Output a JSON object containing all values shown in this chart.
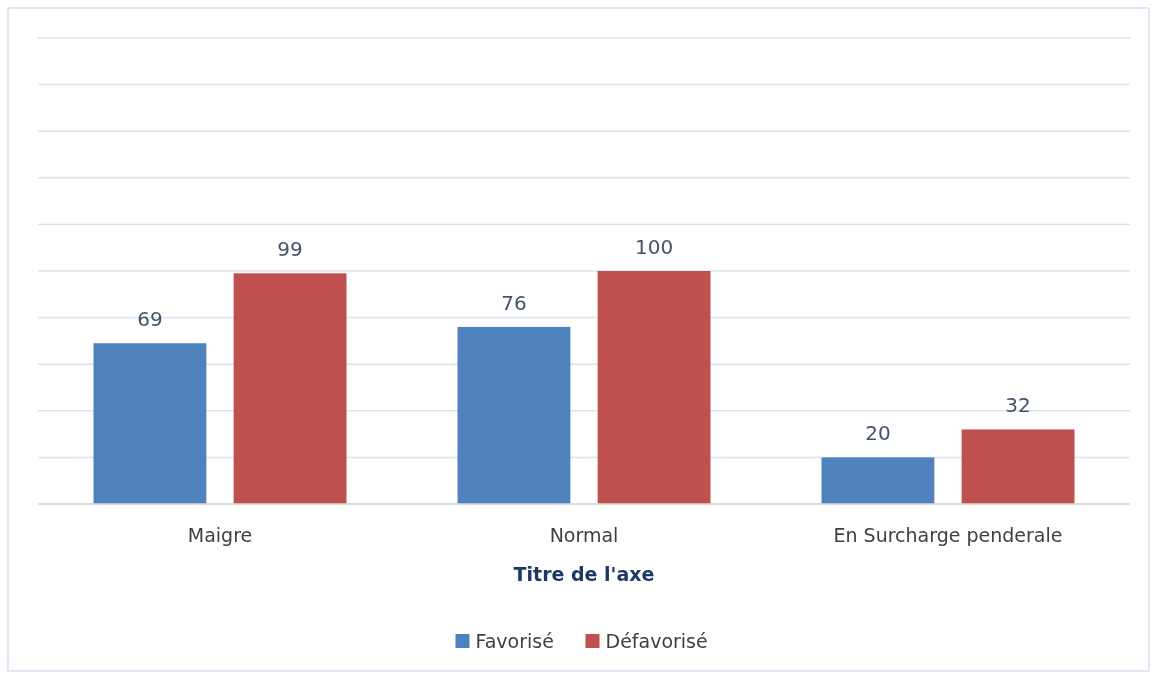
{
  "chart_data": {
    "type": "bar",
    "xlabel": "Titre de l'axe",
    "categories": [
      "Maigre",
      "Normal",
      "En Surcharge penderale"
    ],
    "series": [
      {
        "name": "Favorisé",
        "color": "#4f81bd",
        "values": [
          69,
          76,
          20
        ]
      },
      {
        "name": "Défavorisé",
        "color": "#c0504d",
        "values": [
          99,
          100,
          32
        ]
      }
    ],
    "ylim": [
      0,
      200
    ],
    "yticks": [
      {
        "value": 0,
        "label": null
      },
      {
        "value": 20,
        "label": null
      },
      {
        "value": 40,
        "label": null
      },
      {
        "value": 60,
        "label": null
      },
      {
        "value": 80,
        "label": null
      },
      {
        "value": 100,
        "label": null
      },
      {
        "value": 120,
        "label": null
      },
      {
        "value": 140,
        "label": null
      },
      {
        "value": 160,
        "label": null
      },
      {
        "value": 180,
        "label": null
      },
      {
        "value": 200,
        "label": null
      }
    ],
    "tick_labels": "x",
    "grid": "y",
    "data_labels": true,
    "legend": "bottom"
  }
}
